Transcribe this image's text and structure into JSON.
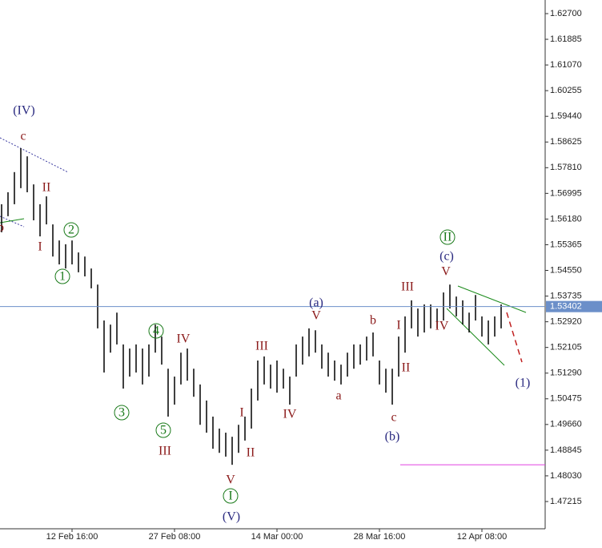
{
  "chart_data": {
    "type": "hilo",
    "ylim": [
      1.4635,
      1.63132
    ],
    "yticks": [
      {
        "value": 1.627,
        "label": "1.62700"
      },
      1.61885,
      {
        "value": 1.6107,
        "label": "1.61070"
      },
      1.60255,
      {
        "value": 1.5944,
        "label": "1.59440"
      },
      1.58625,
      {
        "value": 1.5781,
        "label": "1.57810"
      },
      1.56995,
      {
        "value": 1.5618,
        "label": "1.56180"
      },
      1.55365,
      {
        "value": 1.5455,
        "label": "1.54550"
      },
      1.53735,
      {
        "value": 1.5292,
        "label": "1.52920"
      },
      1.52105,
      {
        "value": 1.5129,
        "label": "1.51290"
      },
      1.50475,
      {
        "value": 1.4966,
        "label": "1.49660"
      },
      1.48845,
      {
        "value": 1.4803,
        "label": "1.48030"
      },
      1.47215
    ],
    "categories": [
      null,
      null,
      null,
      null,
      null,
      null,
      null,
      null,
      null,
      null,
      null,
      "12 Feb 16:00",
      null,
      null,
      null,
      null,
      null,
      null,
      null,
      null,
      null,
      null,
      null,
      null,
      null,
      null,
      null,
      "27 Feb 08:00",
      null,
      null,
      null,
      null,
      null,
      null,
      null,
      null,
      null,
      null,
      null,
      null,
      null,
      null,
      null,
      "14 Mar 00:00",
      null,
      null,
      null,
      null,
      null,
      null,
      null,
      null,
      null,
      null,
      null,
      null,
      null,
      null,
      null,
      "28 Mar 16:00",
      null,
      null,
      null,
      null,
      null,
      null,
      null,
      null,
      null,
      null,
      null,
      null,
      null,
      null,
      null,
      "12 Apr 08:00",
      null,
      null,
      null
    ],
    "highs": [
      1.5665,
      1.5703,
      1.5767,
      1.5843,
      1.5817,
      1.5728,
      1.5665,
      1.569,
      1.5601,
      1.555,
      1.5538,
      1.555,
      1.5512,
      1.5499,
      1.5461,
      1.541,
      1.5296,
      1.5283,
      1.5321,
      1.522,
      1.5207,
      1.522,
      1.5207,
      1.522,
      1.5283,
      1.5245,
      1.5143,
      1.5118,
      1.5194,
      1.5207,
      1.5143,
      1.5093,
      1.5042,
      1.4991,
      1.4953,
      1.494,
      1.4927,
      1.4965,
      1.4991,
      1.508,
      1.5169,
      1.5182,
      1.5156,
      1.5169,
      1.5143,
      1.5118,
      1.522,
      1.5245,
      1.5271,
      1.5265,
      1.522,
      1.5194,
      1.5169,
      1.5156,
      1.5194,
      1.522,
      1.522,
      1.5245,
      1.5258,
      1.5169,
      1.5143,
      1.5143,
      1.5245,
      1.5309,
      1.536,
      1.5334,
      1.5347,
      1.5347,
      1.5334,
      1.5385,
      1.541,
      1.5372,
      1.536,
      1.5321,
      1.5377,
      1.5309,
      1.5296,
      1.5309,
      1.5347
    ],
    "lows": [
      1.5576,
      1.5627,
      1.5665,
      1.5716,
      1.5703,
      1.5614,
      1.5563,
      1.5601,
      1.5499,
      1.5474,
      1.5461,
      1.5474,
      1.5449,
      1.5436,
      1.5398,
      1.5271,
      1.5131,
      1.5194,
      1.522,
      1.508,
      1.5118,
      1.5131,
      1.5093,
      1.5118,
      1.5194,
      1.5156,
      1.4991,
      1.5029,
      1.5093,
      1.5105,
      1.5054,
      1.4965,
      1.494,
      1.4889,
      1.4876,
      1.4864,
      1.4838,
      1.4876,
      1.4915,
      1.4953,
      1.5042,
      1.5093,
      1.508,
      1.5067,
      1.508,
      1.5029,
      1.5118,
      1.5156,
      1.5182,
      1.5194,
      1.5143,
      1.5118,
      1.5105,
      1.5093,
      1.5118,
      1.5143,
      1.5156,
      1.5169,
      1.5182,
      1.5093,
      1.5067,
      1.5029,
      1.5118,
      1.5194,
      1.5271,
      1.5245,
      1.5258,
      1.5271,
      1.5271,
      1.5296,
      1.5334,
      1.5309,
      1.5283,
      1.5258,
      1.5296,
      1.5245,
      1.522,
      1.5245,
      1.5271
    ],
    "bar_color": "#000000",
    "current_price": 1.53402,
    "current_price_color": "#6b8fc9",
    "target_level": 1.4838,
    "target_color": "#e040e0",
    "annotations": [
      {
        "text": "(IV)",
        "color": "#2a2a80"
      },
      {
        "text": "c",
        "color": "#8b1a1a"
      },
      {
        "text": "II",
        "color": "#8b1a1a"
      },
      {
        "text": "b",
        "color": "#8b1a1a"
      },
      {
        "text": "I",
        "color": "#8b1a1a"
      },
      {
        "text": "2",
        "color": "#1a7a1a",
        "circled": true
      },
      {
        "text": "1",
        "color": "#1a7a1a",
        "circled": true
      },
      {
        "text": "4",
        "color": "#1a7a1a",
        "circled": true
      },
      {
        "text": "3",
        "color": "#1a7a1a",
        "circled": true
      },
      {
        "text": "5",
        "color": "#1a7a1a",
        "circled": true
      },
      {
        "text": "IV",
        "color": "#8b1a1a"
      },
      {
        "text": "III",
        "color": "#8b1a1a"
      },
      {
        "text": "I",
        "color": "#8b1a1a"
      },
      {
        "text": "III",
        "color": "#8b1a1a"
      },
      {
        "text": "II",
        "color": "#8b1a1a"
      },
      {
        "text": "V",
        "color": "#8b1a1a"
      },
      {
        "text": "I",
        "color": "#1a7a1a",
        "circled": true
      },
      {
        "text": "(V)",
        "color": "#2a2a80"
      },
      {
        "text": "IV",
        "color": "#8b1a1a"
      },
      {
        "text": "(a)",
        "color": "#2a2a80"
      },
      {
        "text": "V",
        "color": "#8b1a1a"
      },
      {
        "text": "a",
        "color": "#8b1a1a"
      },
      {
        "text": "b",
        "color": "#8b1a1a"
      },
      {
        "text": "c",
        "color": "#8b1a1a"
      },
      {
        "text": "(b)",
        "color": "#2a2a80"
      },
      {
        "text": "III",
        "color": "#8b1a1a"
      },
      {
        "text": "I",
        "color": "#8b1a1a"
      },
      {
        "text": "II",
        "color": "#8b1a1a"
      },
      {
        "text": "IV",
        "color": "#8b1a1a"
      },
      {
        "text": "V",
        "color": "#8b1a1a"
      },
      {
        "text": "(c)",
        "color": "#2a2a80"
      },
      {
        "text": "II",
        "color": "#1a7a1a",
        "circled": true
      },
      {
        "text": "(1)",
        "color": "#2a2a80"
      }
    ]
  }
}
